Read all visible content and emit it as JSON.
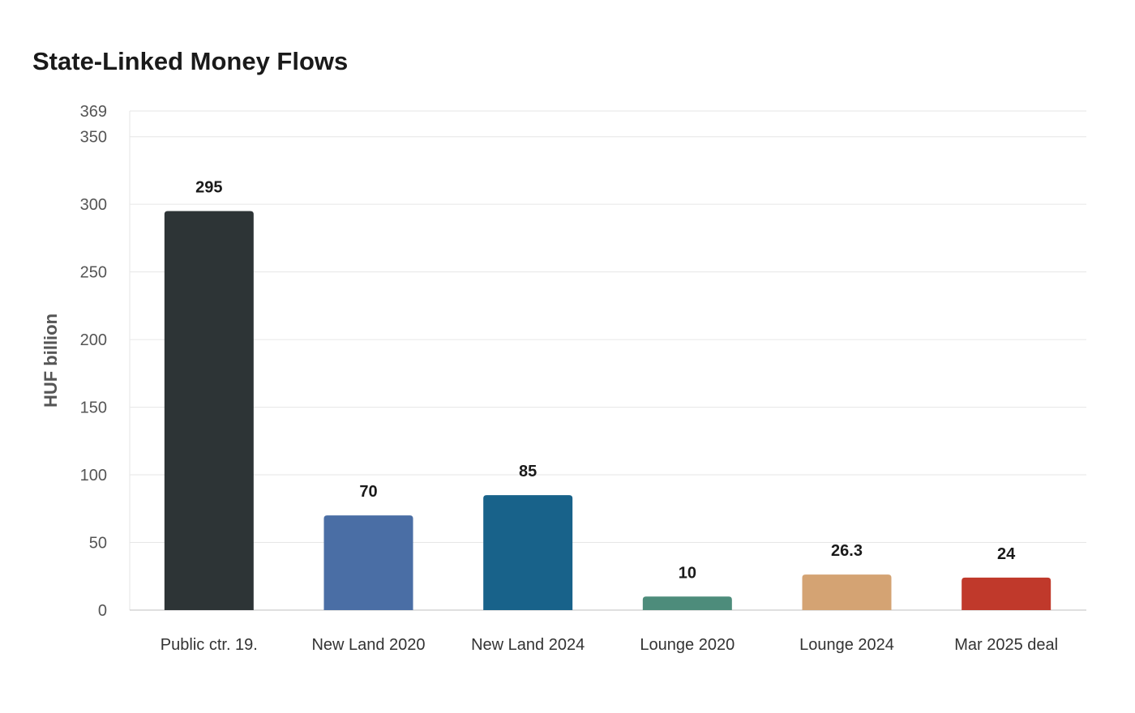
{
  "chart_data": {
    "type": "bar",
    "title": "State-Linked Money Flows",
    "xlabel": "",
    "ylabel": "HUF billion",
    "ylim": [
      0,
      369
    ],
    "yticks": [
      0,
      50,
      100,
      150,
      200,
      250,
      300,
      350,
      369
    ],
    "grid": true,
    "legend": "none",
    "categories": [
      "Public ctr. 19.",
      "New Land 2020",
      "New Land 2024",
      "Lounge 2020",
      "Lounge 2024",
      "Mar 2025 deal"
    ],
    "values": [
      295,
      70,
      85,
      10,
      26.3,
      24
    ],
    "value_labels": [
      "295",
      "70",
      "85",
      "10",
      "26.3",
      "24"
    ],
    "colors": [
      "#2d3436",
      "#4a6ea5",
      "#18628a",
      "#4d8c7b",
      "#d4a373",
      "#c0392b"
    ]
  }
}
